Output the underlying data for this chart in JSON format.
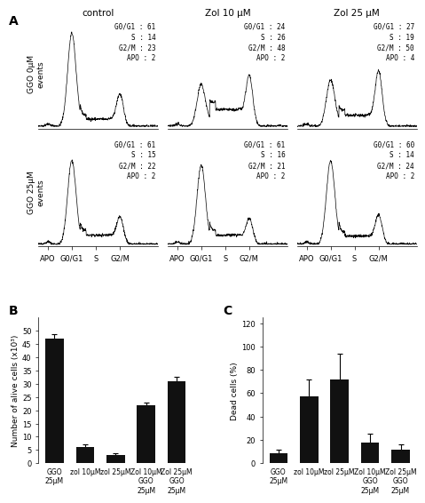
{
  "panel_A_label": "A",
  "panel_B_label": "B",
  "panel_C_label": "C",
  "col_titles": [
    "control",
    "Zol 10 μM",
    "Zol 25 μM"
  ],
  "row_labels": [
    "GGO 0μM\nevents",
    "GGO 25μM\nevents"
  ],
  "x_tick_labels": [
    "APO",
    "G0/G1",
    "S",
    "G2/M"
  ],
  "annotations": [
    [
      [
        "G0/G1 : 61",
        "S : 14",
        "G2/M : 23",
        "APO : 2"
      ],
      [
        "G0/G1 : 24",
        "S : 26",
        "G2/M : 48",
        "APO : 2"
      ],
      [
        "G0/G1 : 27",
        "S : 19",
        "G2/M : 50",
        "APO : 4"
      ]
    ],
    [
      [
        "G0/G1 : 61",
        "S : 15",
        "G2/M : 22",
        "APO : 2"
      ],
      [
        "G0/G1 : 61",
        "S : 16",
        "G2/M : 21",
        "APO : 2"
      ],
      [
        "G0/G1 : 60",
        "S : 14",
        "G2/M : 24",
        "APO : 2"
      ]
    ]
  ],
  "bar_B_values": [
    47,
    6,
    3,
    22,
    31
  ],
  "bar_B_errors": [
    1.5,
    1.2,
    0.8,
    1.0,
    1.5
  ],
  "bar_B_labels": [
    "GGO\n25μM",
    "zol 10μM",
    "zol 25μM",
    "Zol 10μM\nGGO\n25μM",
    "Zol 25μM\nGGO\n25μM"
  ],
  "bar_B_ylabel": "Number of alive cells (x10³)",
  "bar_B_ylim": [
    0,
    55
  ],
  "bar_B_yticks": [
    0,
    5,
    10,
    15,
    20,
    25,
    30,
    35,
    40,
    45,
    50
  ],
  "bar_C_values": [
    9,
    57,
    72,
    18,
    12
  ],
  "bar_C_errors": [
    3,
    15,
    22,
    7,
    4
  ],
  "bar_C_labels": [
    "GGO\n25μM",
    "zol 10μM",
    "zol 25μM",
    "Zol 10μM\nGGO\n25μM",
    "Zol 25μM\nGGO\n25μM"
  ],
  "bar_C_ylabel": "Dead cells (%)",
  "bar_C_ylim": [
    0,
    125
  ],
  "bar_C_yticks": [
    0,
    20,
    40,
    60,
    80,
    100,
    120
  ],
  "bar_color": "#111111",
  "background_color": "#ffffff",
  "font_size": 6.5
}
